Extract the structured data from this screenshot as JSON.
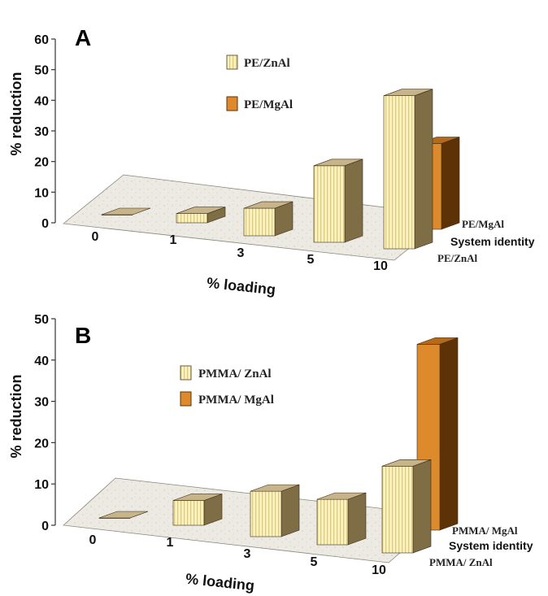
{
  "chart_data": [
    {
      "type": "bar",
      "panel_label": "A",
      "categories": [
        "0",
        "1",
        "3",
        "5",
        "10"
      ],
      "series": [
        {
          "name": "PE/ZnAl",
          "values": [
            0,
            3,
            9,
            25,
            50
          ]
        },
        {
          "name": "PE/MgAl",
          "values": [
            0,
            0,
            0,
            0,
            28
          ]
        }
      ],
      "xlabel": "% loading",
      "ylabel": "% reduction",
      "depth_label": "System identity",
      "depth_categories": [
        "PE/MgAl",
        "PE/ZnAl"
      ],
      "ylim": [
        0,
        60
      ],
      "yticks": [
        "0",
        "10",
        "20",
        "30",
        "40",
        "50",
        "60"
      ],
      "legend": [
        "PE/ZnAl",
        "PE/MgAl"
      ],
      "grid": false,
      "legend_position": "top-center"
    },
    {
      "type": "bar",
      "panel_label": "B",
      "categories": [
        "0",
        "1",
        "3",
        "5",
        "10"
      ],
      "series": [
        {
          "name": "PMMA/ ZnAl",
          "values": [
            0,
            6,
            11,
            11,
            21
          ]
        },
        {
          "name": "PMMA/ MgAl",
          "values": [
            0,
            0,
            0,
            0,
            45
          ]
        }
      ],
      "xlabel": "% loading",
      "ylabel": "% reduction",
      "depth_label": "System identity",
      "depth_categories": [
        "PMMA/ MgAl",
        "PMMA/ ZnAl"
      ],
      "ylim": [
        0,
        50
      ],
      "yticks": [
        "0",
        "10",
        "20",
        "30",
        "40",
        "50"
      ],
      "legend": [
        "PMMA/ ZnAl",
        "PMMA/ MgAl"
      ],
      "grid": false,
      "legend_position": "top-center"
    }
  ],
  "colors": {
    "znal_front": "#fbf2c0",
    "znal_stripe": "#d3c07a",
    "znal_top": "#c7b48a",
    "znal_side": "#7f6e45",
    "mgal_front": "#dc8a2c",
    "mgal_top": "#b66a19",
    "mgal_side": "#5c3206",
    "floor": "#eceae3"
  }
}
